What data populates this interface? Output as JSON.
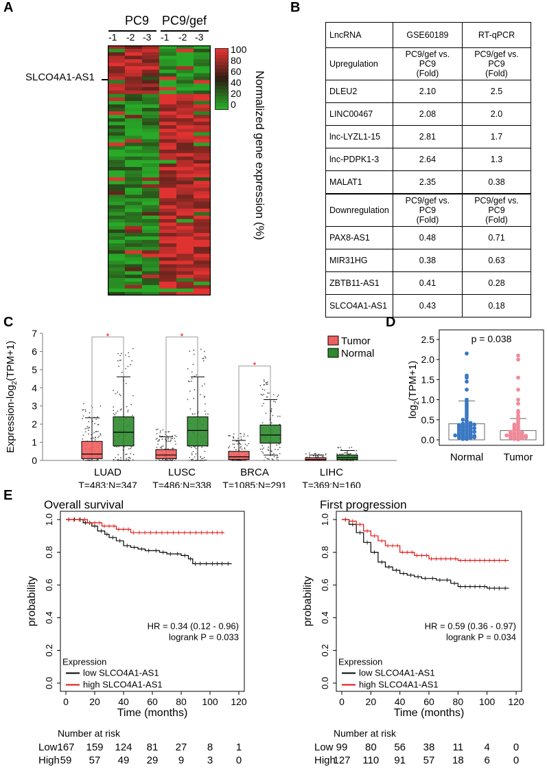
{
  "panel_labels": {
    "a": "A",
    "b": "B",
    "c": "C",
    "d": "D",
    "e": "E"
  },
  "heatmap": {
    "group1": "PC9",
    "group2": "PC9/gef",
    "replicates": [
      "-1",
      "-2",
      "-3",
      "-1",
      "-2",
      "-3"
    ],
    "gene_label": "SLCO4A1-AS1",
    "scale_ticks": [
      "100",
      "80",
      "60",
      "40",
      "20",
      "0"
    ],
    "scale_title": "Normalized gene expression (%)"
  },
  "table": {
    "headers": [
      "LncRNA",
      "GSE60189",
      "RT-qPCR"
    ],
    "up_label": "Upregulation",
    "down_label": "Downregulation",
    "fold_line1": "PC9/gef vs. PC9",
    "fold_line2": "(Fold)",
    "up_rows": [
      [
        "DLEU2",
        "2.10",
        "2.5"
      ],
      [
        "LINC00467",
        "2.08",
        "2.0"
      ],
      [
        "lnc-LYZL1-15",
        "2.81",
        "1.7"
      ],
      [
        "lnc-PDPK1-3",
        "2.64",
        "1.3"
      ],
      [
        "MALAT1",
        "2.35",
        "0.38"
      ]
    ],
    "down_rows": [
      [
        "PAX8-AS1",
        "0.48",
        "0.71"
      ],
      [
        "MIR31HG",
        "0.38",
        "0.63"
      ],
      [
        "ZBTB11-AS1",
        "0.41",
        "0.28"
      ],
      [
        "SLCO4A1-AS1",
        "0.43",
        "0.18"
      ]
    ]
  },
  "chart_data": [
    {
      "type": "box",
      "panel": "C",
      "ylabel_main": "Expression-log",
      "ylabel_sub": "2",
      "ylabel_tail": "(TPM+1)",
      "ylim": [
        0,
        7
      ],
      "yticks": [
        "0",
        "1",
        "2",
        "3",
        "4",
        "5",
        "6",
        "7"
      ],
      "legend": [
        "Tumor",
        "Normal"
      ],
      "colors": {
        "tumor": "#f05f5f",
        "normal": "#2e8b2e"
      },
      "significance_mark": "*",
      "groups": [
        {
          "name": "LUAD",
          "n": "T=483;N=347",
          "tumor": {
            "q1": 0.1,
            "median": 0.35,
            "q3": 1.05,
            "wlo": 0,
            "whi": 2.35
          },
          "normal": {
            "q1": 0.8,
            "median": 1.55,
            "q3": 2.4,
            "wlo": 0,
            "whi": 4.6
          },
          "sig": true
        },
        {
          "name": "LUSC",
          "n": "T=486;N=338",
          "tumor": {
            "q1": 0.1,
            "median": 0.3,
            "q3": 0.6,
            "wlo": 0,
            "whi": 1.3
          },
          "normal": {
            "q1": 0.8,
            "median": 1.65,
            "q3": 2.4,
            "wlo": 0,
            "whi": 4.6
          },
          "sig": true
        },
        {
          "name": "BRCA",
          "n": "T=1085;N=291",
          "tumor": {
            "q1": 0.05,
            "median": 0.2,
            "q3": 0.5,
            "wlo": 0,
            "whi": 1.1
          },
          "normal": {
            "q1": 0.95,
            "median": 1.4,
            "q3": 1.95,
            "wlo": 0.3,
            "whi": 3.35
          },
          "sig": true
        },
        {
          "name": "LIHC",
          "n": "T=369;N=160",
          "tumor": {
            "q1": 0,
            "median": 0.05,
            "q3": 0.15,
            "wlo": 0,
            "whi": 0.3
          },
          "normal": {
            "q1": 0.05,
            "median": 0.15,
            "q3": 0.3,
            "wlo": 0,
            "whi": 0.55
          },
          "sig": false
        }
      ]
    },
    {
      "type": "scatter",
      "panel": "D",
      "ylabel_main": "log",
      "ylabel_sub": "2",
      "ylabel_tail": "(TPM+1)",
      "ylim": [
        0,
        2.5
      ],
      "yticks": [
        "0.0",
        "0.5",
        "1.0",
        "1.5",
        "2.0",
        "2.5"
      ],
      "categories": [
        "Normal",
        "Tumor"
      ],
      "pvalue": "p = 0.038",
      "colors": {
        "normal": "#3a78c2",
        "tumor": "#f08a9a"
      },
      "normal": [
        0.02,
        0.02,
        0.03,
        0.04,
        0.05,
        0.05,
        0.06,
        0.07,
        0.08,
        0.09,
        0.1,
        0.1,
        0.11,
        0.12,
        0.13,
        0.14,
        0.15,
        0.16,
        0.17,
        0.18,
        0.19,
        0.2,
        0.21,
        0.22,
        0.23,
        0.24,
        0.25,
        0.26,
        0.27,
        0.28,
        0.29,
        0.3,
        0.31,
        0.32,
        0.33,
        0.34,
        0.35,
        0.36,
        0.37,
        0.38,
        0.39,
        0.4,
        0.42,
        0.45,
        0.48,
        0.5,
        0.55,
        0.6,
        0.65,
        0.7,
        0.75,
        0.8,
        0.85,
        0.9,
        0.95,
        1.0,
        1.25,
        1.45,
        1.55,
        1.6,
        2.15
      ],
      "tumor": [
        0.01,
        0.02,
        0.03,
        0.03,
        0.04,
        0.05,
        0.06,
        0.07,
        0.08,
        0.09,
        0.1,
        0.1,
        0.11,
        0.12,
        0.13,
        0.14,
        0.15,
        0.16,
        0.17,
        0.18,
        0.2,
        0.22,
        0.24,
        0.25,
        0.27,
        0.3,
        0.33,
        0.35,
        0.38,
        0.4,
        0.45,
        0.5,
        0.55,
        0.6,
        0.68,
        0.72,
        0.9,
        1.0,
        1.25,
        1.55,
        2.0,
        2.1
      ],
      "normal_stats": {
        "mean": 0.4,
        "sd_hi": 0.97
      },
      "tumor_stats": {
        "mean": 0.23,
        "sd_hi": 0.53
      }
    },
    {
      "type": "line",
      "panel": "E-left",
      "title": "Overall survival",
      "xlabel": "Time (months)",
      "ylabel": "probability",
      "xlim": [
        0,
        120
      ],
      "ylim": [
        0,
        1
      ],
      "xticks": [
        "0",
        "20",
        "40",
        "60",
        "80",
        "100",
        "120"
      ],
      "yticks": [
        "0.0",
        "0.2",
        "0.4",
        "0.6",
        "0.8",
        "1.0"
      ],
      "hr": "HR = 0.34 (0.12 - 0.96)",
      "logrank": "logrank P = 0.033",
      "legend_title": "Expression",
      "series": [
        {
          "name": "low SLCO4A1-AS1",
          "color": "#000000",
          "x": [
            0,
            12,
            18,
            22,
            27,
            30,
            35,
            40,
            45,
            50,
            55,
            60,
            65,
            70,
            75,
            80,
            85,
            88,
            95,
            100,
            110,
            115
          ],
          "y": [
            1.0,
            0.98,
            0.96,
            0.93,
            0.91,
            0.89,
            0.87,
            0.84,
            0.83,
            0.82,
            0.81,
            0.81,
            0.8,
            0.79,
            0.79,
            0.78,
            0.76,
            0.73,
            0.73,
            0.73,
            0.73,
            0.73
          ]
        },
        {
          "name": "high SLCO4A1-AS1",
          "color": "#e01010",
          "x": [
            0,
            15,
            25,
            35,
            45,
            100,
            110
          ],
          "y": [
            1.0,
            0.98,
            0.96,
            0.94,
            0.92,
            0.92,
            0.92
          ]
        }
      ],
      "risk": {
        "header": "Number at risk",
        "rows": [
          {
            "label": "Low",
            "values": [
              "167",
              "159",
              "124",
              "81",
              "27",
              "8",
              "1"
            ]
          },
          {
            "label": "High",
            "values": [
              "59",
              "57",
              "49",
              "29",
              "9",
              "3",
              "0"
            ]
          }
        ]
      }
    },
    {
      "type": "line",
      "panel": "E-right",
      "title": "First progression",
      "xlabel": "Time (months)",
      "ylabel": "probability",
      "xlim": [
        0,
        120
      ],
      "ylim": [
        0,
        1
      ],
      "xticks": [
        "0",
        "20",
        "40",
        "60",
        "80",
        "100",
        "120"
      ],
      "yticks": [
        "0.0",
        "0.2",
        "0.4",
        "0.6",
        "0.8",
        "1.0"
      ],
      "hr": "HR = 0.59 (0.36 - 0.97)",
      "logrank": "logrank P = 0.034",
      "legend_title": "Expression",
      "series": [
        {
          "name": "low SLCO4A1-AS1",
          "color": "#000000",
          "x": [
            0,
            5,
            10,
            15,
            20,
            25,
            30,
            35,
            40,
            45,
            50,
            55,
            60,
            65,
            70,
            75,
            80,
            90,
            100,
            110,
            115
          ],
          "y": [
            1.0,
            0.97,
            0.92,
            0.86,
            0.8,
            0.74,
            0.71,
            0.69,
            0.67,
            0.66,
            0.65,
            0.64,
            0.64,
            0.63,
            0.63,
            0.61,
            0.59,
            0.59,
            0.58,
            0.58,
            0.58
          ]
        },
        {
          "name": "high SLCO4A1-AS1",
          "color": "#e01010",
          "x": [
            0,
            5,
            10,
            15,
            20,
            25,
            30,
            40,
            50,
            60,
            70,
            80,
            90,
            100,
            110,
            115
          ],
          "y": [
            1.0,
            0.99,
            0.97,
            0.93,
            0.9,
            0.87,
            0.84,
            0.8,
            0.78,
            0.76,
            0.76,
            0.75,
            0.75,
            0.75,
            0.75,
            0.75
          ]
        }
      ],
      "risk": {
        "header": "Number at risk",
        "rows": [
          {
            "label": "Low",
            "values": [
              "99",
              "80",
              "56",
              "38",
              "11",
              "4",
              "0"
            ]
          },
          {
            "label": "High",
            "values": [
              "127",
              "110",
              "91",
              "57",
              "18",
              "6",
              "0"
            ]
          }
        ]
      }
    }
  ]
}
